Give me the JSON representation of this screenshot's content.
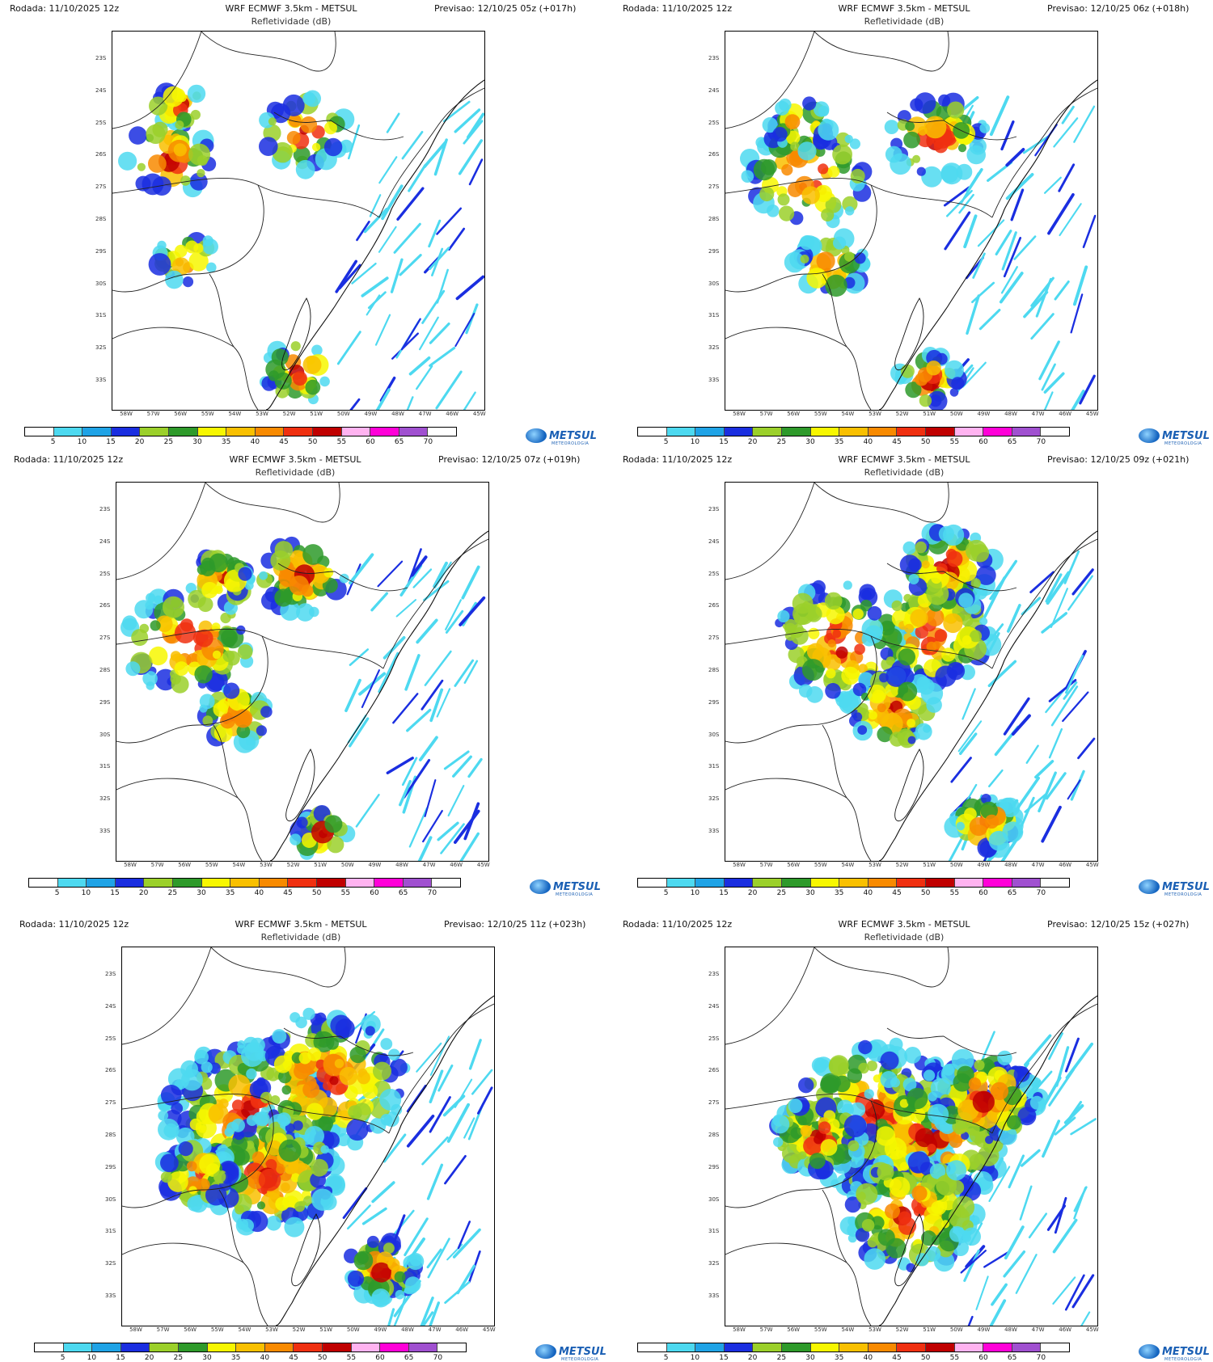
{
  "common": {
    "run": "Rodada: 11/10/2025 12z",
    "title": "WRF ECMWF 3.5km - METSUL",
    "subtitle": "Refletividade (dB)",
    "lat_labels": [
      "23S",
      "24S",
      "25S",
      "26S",
      "27S",
      "28S",
      "29S",
      "30S",
      "31S",
      "32S",
      "33S"
    ],
    "lon_labels": [
      "58W",
      "57W",
      "56W",
      "55W",
      "54W",
      "53W",
      "52W",
      "51W",
      "50W",
      "49W",
      "48W",
      "47W",
      "46W",
      "45W"
    ],
    "colorbar_labels": [
      "5",
      "10",
      "15",
      "20",
      "25",
      "30",
      "35",
      "40",
      "45",
      "50",
      "55",
      "60",
      "65",
      "70"
    ],
    "colorbar_colors": [
      "#ffffff",
      "#4dd9f0",
      "#1fa3e6",
      "#1a2ee0",
      "#9bd02a",
      "#2e9a2a",
      "#f7f700",
      "#f9c000",
      "#f88a00",
      "#f03010",
      "#c00000",
      "#ffb3f0",
      "#ff00d8",
      "#a050d0",
      "#ffffff"
    ],
    "logo_text": "METSUL",
    "logo_sub": "METEOROLOGIA"
  },
  "panels": [
    {
      "forecast": "Previsao: 12/10/25 05z (+017h)",
      "coverage": 0.25
    },
    {
      "forecast": "Previsao: 12/10/25 06z (+018h)",
      "coverage": 0.32
    },
    {
      "forecast": "Previsao: 12/10/25 07z (+019h)",
      "coverage": 0.38
    },
    {
      "forecast": "Previsao: 12/10/25 09z (+021h)",
      "coverage": 0.48
    },
    {
      "forecast": "Previsao: 12/10/25 11z (+023h)",
      "coverage": 0.62
    },
    {
      "forecast": "Previsao: 12/10/25 15z (+027h)",
      "coverage": 0.66
    }
  ]
}
